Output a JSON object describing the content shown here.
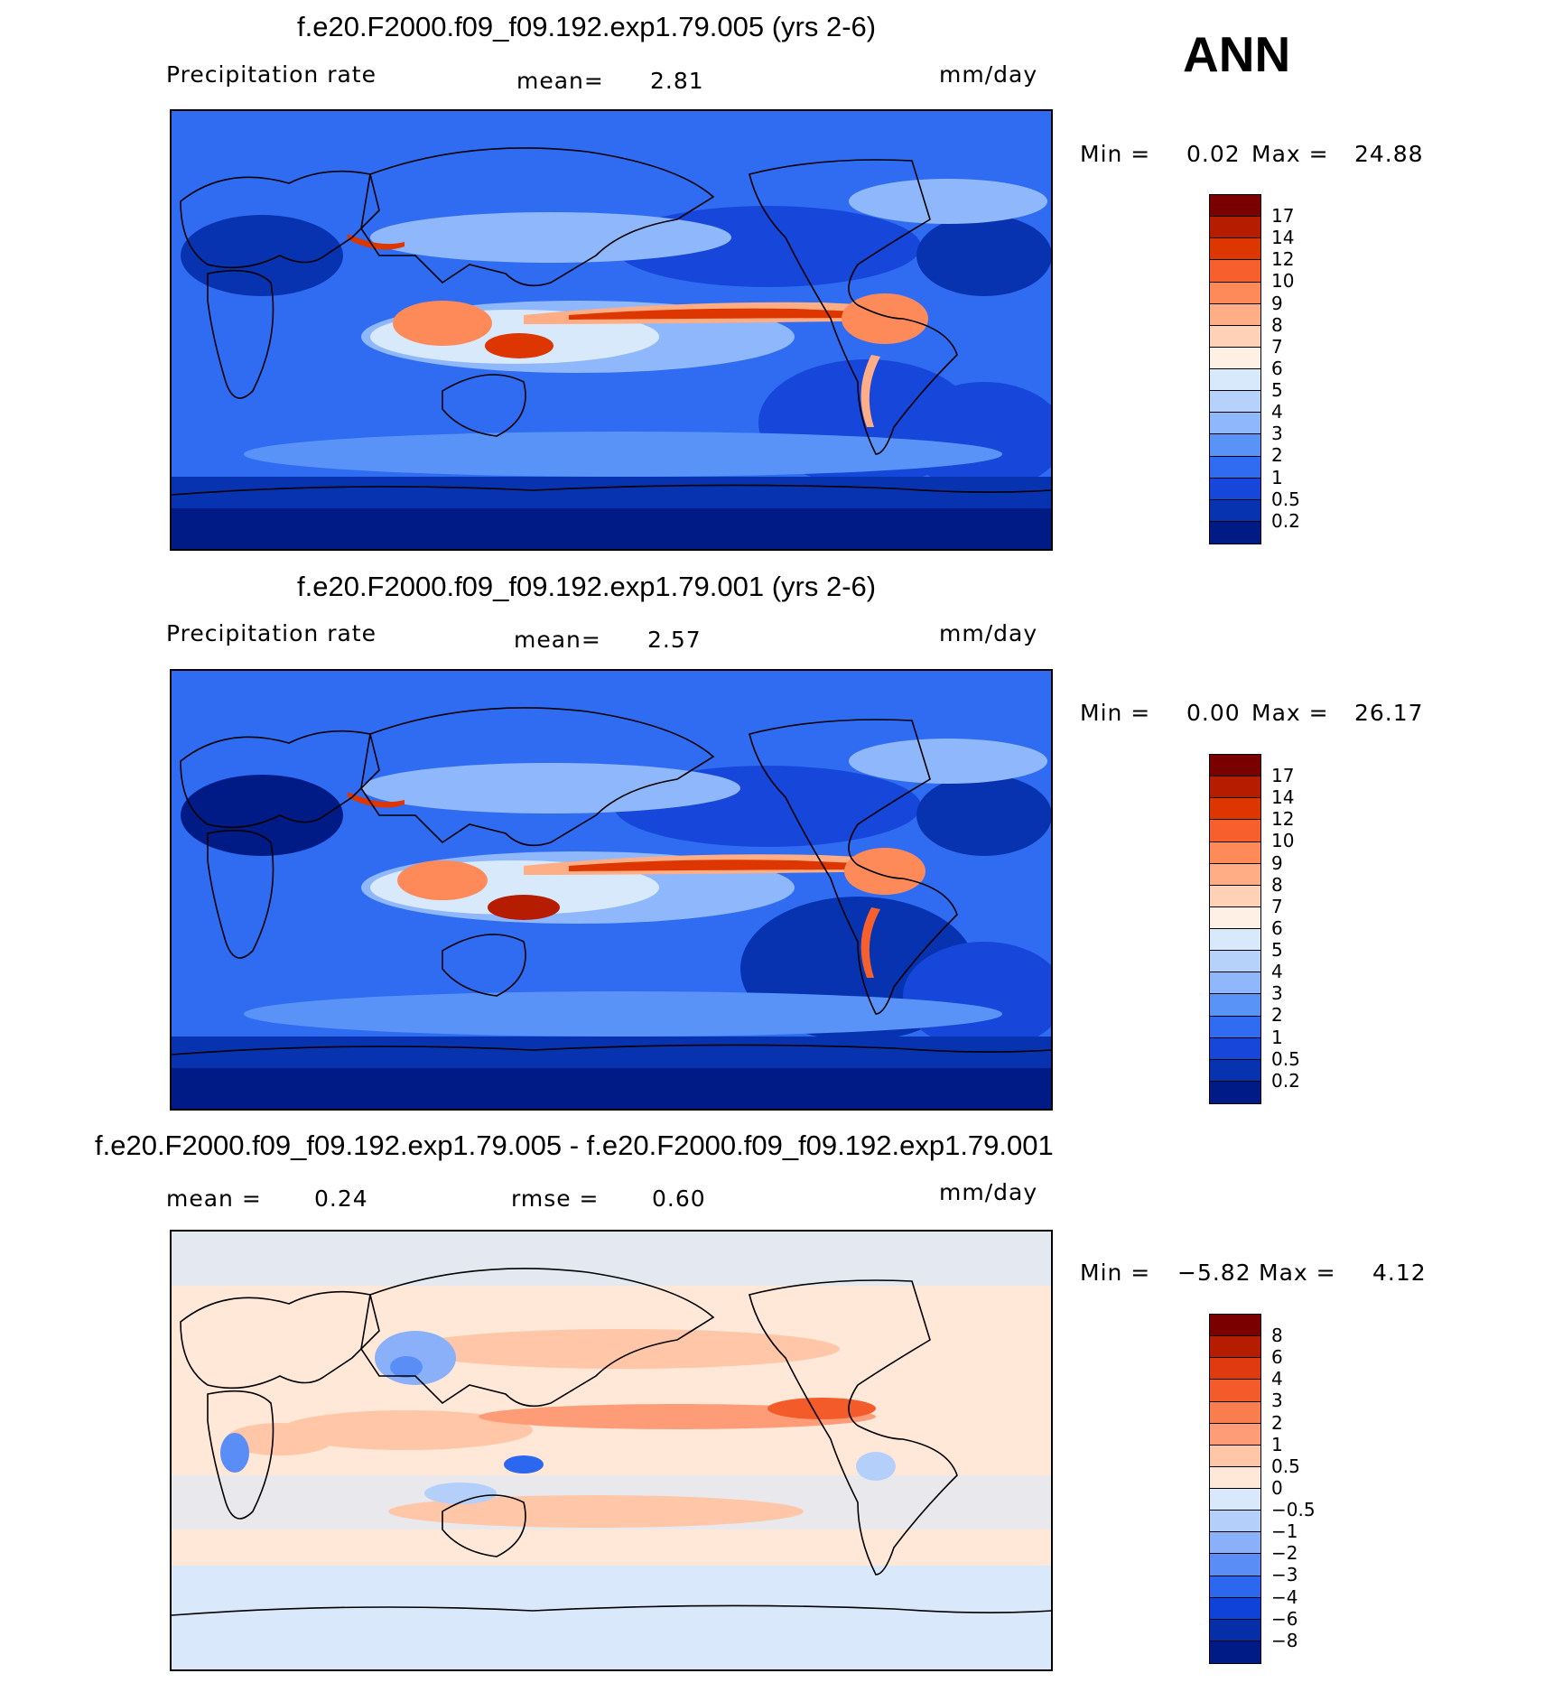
{
  "season": "ANN",
  "panels": [
    {
      "title": "f.e20.F2000.f09_f09.192.exp1.79.005 (yrs 2-6)",
      "left_label": "Precipitation rate",
      "mean_label": "mean=",
      "mean_value": "2.81",
      "units": "mm/day",
      "min_label": "Min =",
      "min_value": "0.02",
      "max_label": "Max =",
      "max_value": "24.88",
      "levels": [
        "17",
        "14",
        "12",
        "10",
        "9",
        "8",
        "7",
        "6",
        "5",
        "4",
        "3",
        "2",
        "1",
        "0.5",
        "0.2"
      ],
      "colors": [
        "#7a0000",
        "#b61c00",
        "#dd3600",
        "#f7602d",
        "#ff8a59",
        "#ffad84",
        "#ffd2b8",
        "#fff0e6",
        "#d7e9fb",
        "#b6d2fb",
        "#8fb7fb",
        "#5a93f8",
        "#2f6cf2",
        "#1746da",
        "#0833b0",
        "#001b85"
      ]
    },
    {
      "title": "f.e20.F2000.f09_f09.192.exp1.79.001 (yrs 2-6)",
      "left_label": "Precipitation rate",
      "mean_label": "mean=",
      "mean_value": "2.57",
      "units": "mm/day",
      "min_label": "Min =",
      "min_value": "0.00",
      "max_label": "Max =",
      "max_value": "26.17",
      "levels": [
        "17",
        "14",
        "12",
        "10",
        "9",
        "8",
        "7",
        "6",
        "5",
        "4",
        "3",
        "2",
        "1",
        "0.5",
        "0.2"
      ],
      "colors": [
        "#7a0000",
        "#b61c00",
        "#dd3600",
        "#f7602d",
        "#ff8a59",
        "#ffad84",
        "#ffd2b8",
        "#fff0e6",
        "#d7e9fb",
        "#b6d2fb",
        "#8fb7fb",
        "#5a93f8",
        "#2f6cf2",
        "#1746da",
        "#0833b0",
        "#001b85"
      ]
    },
    {
      "title": "f.e20.F2000.f09_f09.192.exp1.79.005 - f.e20.F2000.f09_f09.192.exp1.79.001",
      "mean_label": "mean =",
      "mean_value": "0.24",
      "rmse_label": "rmse =",
      "rmse_value": "0.60",
      "units": "mm/day",
      "min_label": "Min =",
      "min_value": "−5.82",
      "max_label": "Max =",
      "max_value": "4.12",
      "levels": [
        "8",
        "6",
        "4",
        "3",
        "2",
        "1",
        "0.5",
        "0",
        "−0.5",
        "−1",
        "−2",
        "−3",
        "−4",
        "−6",
        "−8"
      ],
      "colors": [
        "#7a0000",
        "#b61c00",
        "#e03a10",
        "#f45b2a",
        "#fa7d4e",
        "#ff9c78",
        "#ffc6a8",
        "#ffe8d8",
        "#d9e8fb",
        "#b5cffb",
        "#8bb0fa",
        "#5a8ef6",
        "#2c67ef",
        "#0e42d8",
        "#052ea8",
        "#001b85"
      ]
    }
  ]
}
